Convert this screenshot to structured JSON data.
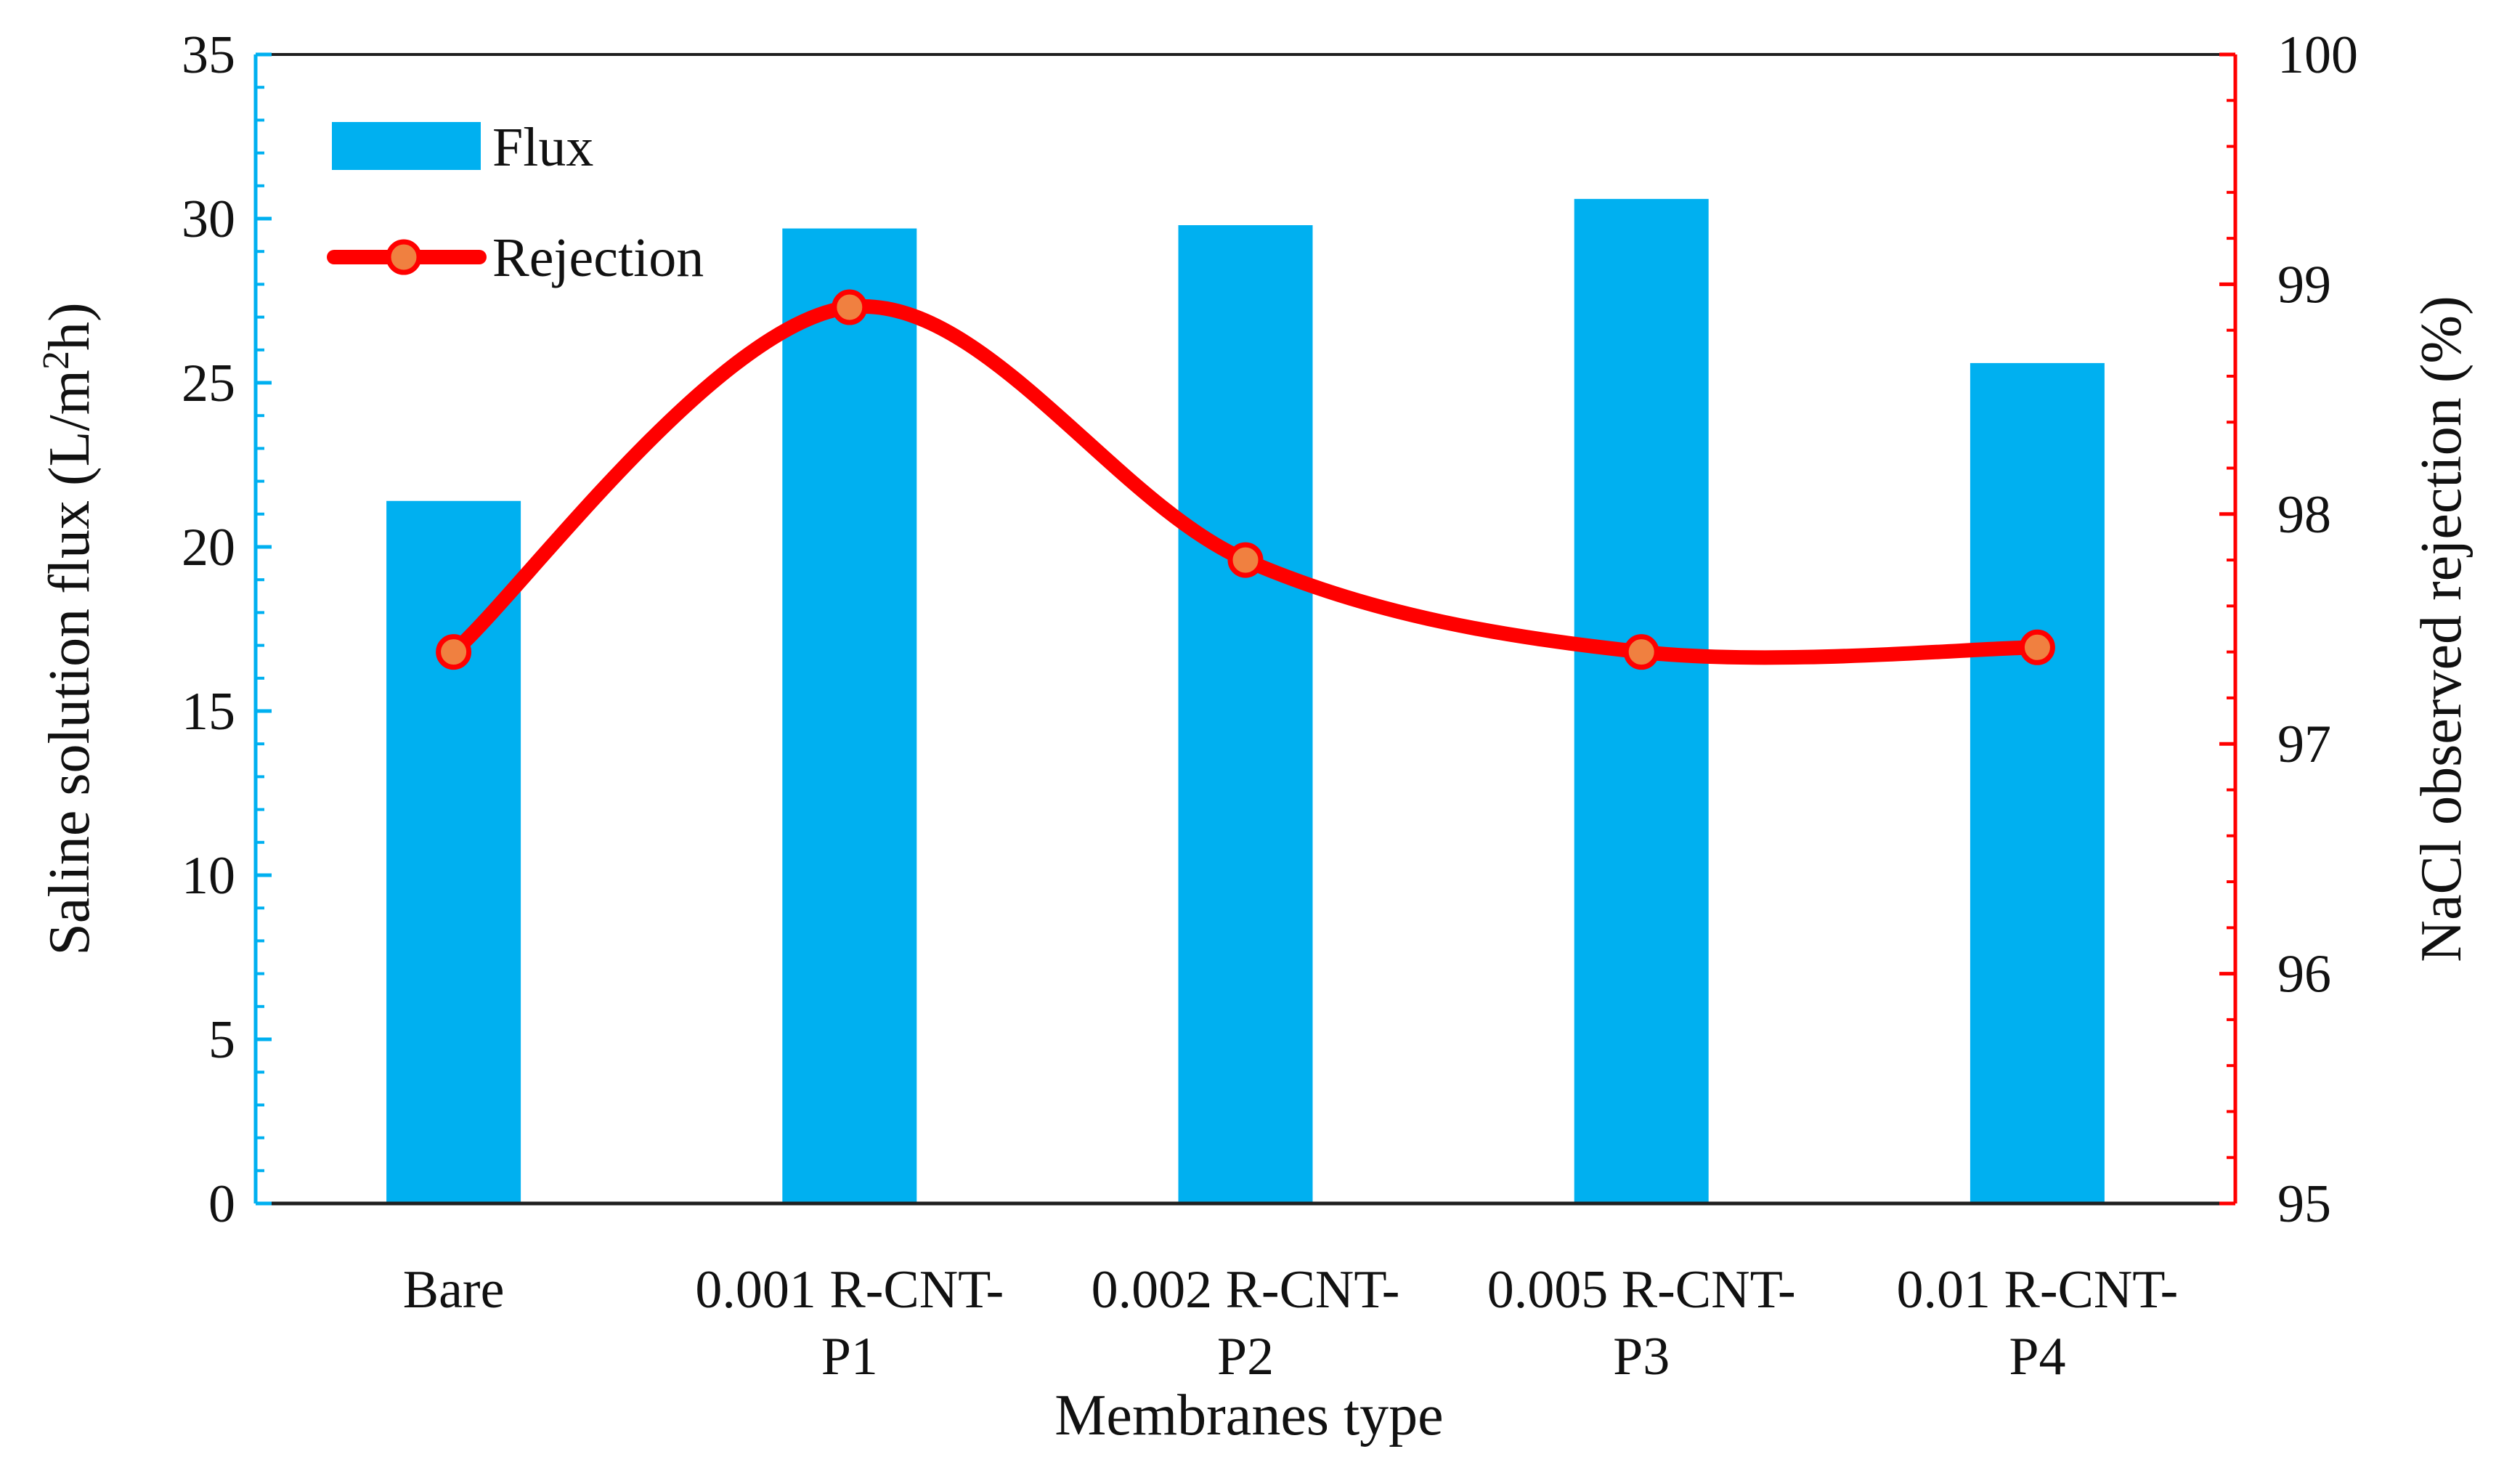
{
  "chart_data": {
    "type": "bar+line",
    "title": "",
    "categories": [
      [
        "Bare"
      ],
      [
        "0.001 R-CNT-",
        "P1"
      ],
      [
        "0.002 R-CNT-",
        "P2"
      ],
      [
        "0.005 R-CNT-",
        "P3"
      ],
      [
        "0.01 R-CNT-",
        "P4"
      ]
    ],
    "xlabel": "Membranes type",
    "y_left": {
      "label_main": "Saline solution flux (L/m",
      "label_sup": "2",
      "label_tail": "h)",
      "ylim": [
        0,
        35
      ],
      "ticks": [
        "0",
        "5",
        "10",
        "15",
        "20",
        "25",
        "30",
        "35"
      ],
      "color": "#00b0f0"
    },
    "y_right": {
      "label": "NaCl observed rejection (%)",
      "ylim": [
        95,
        100
      ],
      "ticks": [
        "95",
        "96",
        "97",
        "98",
        "99",
        "100"
      ],
      "color": "#ff0000"
    },
    "series": [
      {
        "name": "Flux",
        "kind": "bar",
        "axis": "left",
        "color": "#00b0f0",
        "values": [
          21.4,
          29.7,
          29.8,
          30.6,
          25.6
        ]
      },
      {
        "name": "Rejection",
        "kind": "line",
        "axis": "right",
        "color": "#ff0000",
        "marker_color": "#f08040",
        "values": [
          97.4,
          98.9,
          97.8,
          97.4,
          97.42
        ]
      }
    ],
    "legend": {
      "position": "top-left",
      "items": [
        "Flux",
        "Rejection"
      ]
    }
  }
}
